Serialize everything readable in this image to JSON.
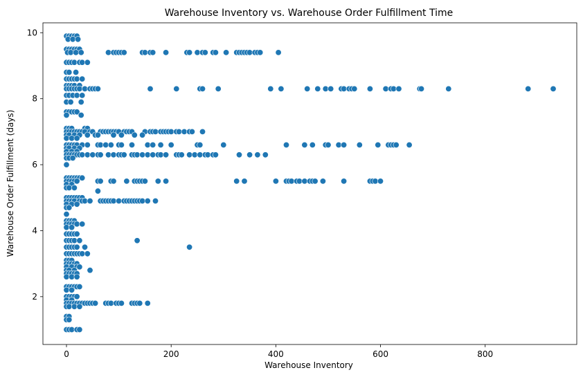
{
  "chart_data": {
    "type": "scatter",
    "title": "Warehouse Inventory vs. Warehouse Order Fulfillment Time",
    "xlabel": "Warehouse Inventory",
    "ylabel": "Warehouse Order Fulfillment (days)",
    "xlim": [
      -45,
      975
    ],
    "ylim": [
      0.55,
      10.3
    ],
    "xticks": [
      0,
      200,
      400,
      600,
      800
    ],
    "yticks": [
      2,
      4,
      6,
      8,
      10
    ],
    "grid": false,
    "color": "#1f77b4",
    "points": [
      [
        0,
        9.9
      ],
      [
        5,
        9.9
      ],
      [
        10,
        9.9
      ],
      [
        15,
        9.9
      ],
      [
        20,
        9.9
      ],
      [
        3,
        9.8
      ],
      [
        12,
        9.8
      ],
      [
        22,
        9.8
      ],
      [
        0,
        9.5
      ],
      [
        5,
        9.5
      ],
      [
        10,
        9.5
      ],
      [
        15,
        9.5
      ],
      [
        20,
        9.5
      ],
      [
        25,
        9.5
      ],
      [
        2,
        9.4
      ],
      [
        8,
        9.4
      ],
      [
        18,
        9.4
      ],
      [
        28,
        9.4
      ],
      [
        80,
        9.4
      ],
      [
        90,
        9.4
      ],
      [
        95,
        9.4
      ],
      [
        100,
        9.4
      ],
      [
        105,
        9.4
      ],
      [
        110,
        9.4
      ],
      [
        145,
        9.4
      ],
      [
        150,
        9.4
      ],
      [
        160,
        9.4
      ],
      [
        165,
        9.4
      ],
      [
        190,
        9.4
      ],
      [
        230,
        9.4
      ],
      [
        235,
        9.4
      ],
      [
        250,
        9.4
      ],
      [
        260,
        9.4
      ],
      [
        265,
        9.4
      ],
      [
        280,
        9.4
      ],
      [
        285,
        9.4
      ],
      [
        305,
        9.4
      ],
      [
        325,
        9.4
      ],
      [
        330,
        9.4
      ],
      [
        335,
        9.4
      ],
      [
        340,
        9.4
      ],
      [
        345,
        9.4
      ],
      [
        350,
        9.4
      ],
      [
        360,
        9.4
      ],
      [
        365,
        9.4
      ],
      [
        370,
        9.4
      ],
      [
        405,
        9.4
      ],
      [
        0,
        9.1
      ],
      [
        5,
        9.1
      ],
      [
        10,
        9.1
      ],
      [
        15,
        9.1
      ],
      [
        25,
        9.1
      ],
      [
        30,
        9.1
      ],
      [
        40,
        9.1
      ],
      [
        0,
        8.8
      ],
      [
        5,
        8.8
      ],
      [
        18,
        8.8
      ],
      [
        0,
        8.6
      ],
      [
        5,
        8.6
      ],
      [
        10,
        8.6
      ],
      [
        15,
        8.6
      ],
      [
        20,
        8.6
      ],
      [
        30,
        8.6
      ],
      [
        0,
        8.4
      ],
      [
        5,
        8.4
      ],
      [
        10,
        8.4
      ],
      [
        15,
        8.4
      ],
      [
        25,
        8.4
      ],
      [
        0,
        8.3
      ],
      [
        5,
        8.3
      ],
      [
        10,
        8.3
      ],
      [
        15,
        8.3
      ],
      [
        20,
        8.3
      ],
      [
        25,
        8.3
      ],
      [
        35,
        8.3
      ],
      [
        45,
        8.3
      ],
      [
        50,
        8.3
      ],
      [
        55,
        8.3
      ],
      [
        60,
        8.3
      ],
      [
        160,
        8.3
      ],
      [
        210,
        8.3
      ],
      [
        255,
        8.3
      ],
      [
        260,
        8.3
      ],
      [
        290,
        8.3
      ],
      [
        390,
        8.3
      ],
      [
        410,
        8.3
      ],
      [
        460,
        8.3
      ],
      [
        480,
        8.3
      ],
      [
        495,
        8.3
      ],
      [
        505,
        8.3
      ],
      [
        525,
        8.3
      ],
      [
        530,
        8.3
      ],
      [
        540,
        8.3
      ],
      [
        545,
        8.3
      ],
      [
        550,
        8.3
      ],
      [
        580,
        8.3
      ],
      [
        610,
        8.3
      ],
      [
        620,
        8.3
      ],
      [
        625,
        8.3
      ],
      [
        635,
        8.3
      ],
      [
        675,
        8.3
      ],
      [
        678,
        8.3
      ],
      [
        730,
        8.3
      ],
      [
        882,
        8.3
      ],
      [
        930,
        8.3
      ],
      [
        0,
        8.1
      ],
      [
        5,
        8.1
      ],
      [
        12,
        8.1
      ],
      [
        20,
        8.1
      ],
      [
        30,
        8.1
      ],
      [
        0,
        7.9
      ],
      [
        8,
        7.9
      ],
      [
        28,
        7.9
      ],
      [
        0,
        7.6
      ],
      [
        5,
        7.6
      ],
      [
        10,
        7.6
      ],
      [
        15,
        7.6
      ],
      [
        20,
        7.6
      ],
      [
        0,
        7.5
      ],
      [
        28,
        7.5
      ],
      [
        0,
        7.1
      ],
      [
        5,
        7.1
      ],
      [
        10,
        7.1
      ],
      [
        35,
        7.1
      ],
      [
        40,
        7.1
      ],
      [
        0,
        7.0
      ],
      [
        5,
        7.0
      ],
      [
        10,
        7.0
      ],
      [
        15,
        7.0
      ],
      [
        20,
        7.0
      ],
      [
        25,
        7.0
      ],
      [
        30,
        7.0
      ],
      [
        35,
        7.0
      ],
      [
        45,
        7.0
      ],
      [
        50,
        7.0
      ],
      [
        65,
        7.0
      ],
      [
        70,
        7.0
      ],
      [
        75,
        7.0
      ],
      [
        80,
        7.0
      ],
      [
        85,
        7.0
      ],
      [
        90,
        7.0
      ],
      [
        95,
        7.0
      ],
      [
        100,
        7.0
      ],
      [
        110,
        7.0
      ],
      [
        115,
        7.0
      ],
      [
        120,
        7.0
      ],
      [
        125,
        7.0
      ],
      [
        150,
        7.0
      ],
      [
        160,
        7.0
      ],
      [
        165,
        7.0
      ],
      [
        170,
        7.0
      ],
      [
        180,
        7.0
      ],
      [
        185,
        7.0
      ],
      [
        190,
        7.0
      ],
      [
        195,
        7.0
      ],
      [
        200,
        7.0
      ],
      [
        210,
        7.0
      ],
      [
        215,
        7.0
      ],
      [
        225,
        7.0
      ],
      [
        235,
        7.0
      ],
      [
        240,
        7.0
      ],
      [
        260,
        7.0
      ],
      [
        0,
        6.9
      ],
      [
        5,
        6.9
      ],
      [
        15,
        6.9
      ],
      [
        25,
        6.9
      ],
      [
        40,
        6.9
      ],
      [
        55,
        6.9
      ],
      [
        60,
        6.9
      ],
      [
        90,
        6.9
      ],
      [
        105,
        6.9
      ],
      [
        130,
        6.9
      ],
      [
        145,
        6.9
      ],
      [
        0,
        6.8
      ],
      [
        10,
        6.8
      ],
      [
        20,
        6.8
      ],
      [
        0,
        6.6
      ],
      [
        5,
        6.6
      ],
      [
        10,
        6.6
      ],
      [
        15,
        6.6
      ],
      [
        20,
        6.6
      ],
      [
        30,
        6.6
      ],
      [
        40,
        6.6
      ],
      [
        60,
        6.6
      ],
      [
        65,
        6.6
      ],
      [
        75,
        6.6
      ],
      [
        85,
        6.6
      ],
      [
        100,
        6.6
      ],
      [
        105,
        6.6
      ],
      [
        125,
        6.6
      ],
      [
        155,
        6.6
      ],
      [
        165,
        6.6
      ],
      [
        180,
        6.6
      ],
      [
        200,
        6.6
      ],
      [
        250,
        6.6
      ],
      [
        255,
        6.6
      ],
      [
        300,
        6.6
      ],
      [
        420,
        6.6
      ],
      [
        455,
        6.6
      ],
      [
        470,
        6.6
      ],
      [
        495,
        6.6
      ],
      [
        500,
        6.6
      ],
      [
        520,
        6.6
      ],
      [
        530,
        6.6
      ],
      [
        560,
        6.6
      ],
      [
        595,
        6.6
      ],
      [
        615,
        6.6
      ],
      [
        620,
        6.6
      ],
      [
        625,
        6.6
      ],
      [
        630,
        6.6
      ],
      [
        655,
        6.6
      ],
      [
        0,
        6.5
      ],
      [
        5,
        6.5
      ],
      [
        15,
        6.5
      ],
      [
        25,
        6.5
      ],
      [
        0,
        6.4
      ],
      [
        10,
        6.4
      ],
      [
        20,
        6.4
      ],
      [
        0,
        6.3
      ],
      [
        5,
        6.3
      ],
      [
        10,
        6.3
      ],
      [
        15,
        6.3
      ],
      [
        20,
        6.3
      ],
      [
        25,
        6.3
      ],
      [
        30,
        6.3
      ],
      [
        40,
        6.3
      ],
      [
        50,
        6.3
      ],
      [
        60,
        6.3
      ],
      [
        65,
        6.3
      ],
      [
        80,
        6.3
      ],
      [
        90,
        6.3
      ],
      [
        100,
        6.3
      ],
      [
        105,
        6.3
      ],
      [
        110,
        6.3
      ],
      [
        125,
        6.3
      ],
      [
        130,
        6.3
      ],
      [
        135,
        6.3
      ],
      [
        145,
        6.3
      ],
      [
        155,
        6.3
      ],
      [
        165,
        6.3
      ],
      [
        175,
        6.3
      ],
      [
        180,
        6.3
      ],
      [
        190,
        6.3
      ],
      [
        210,
        6.3
      ],
      [
        215,
        6.3
      ],
      [
        220,
        6.3
      ],
      [
        235,
        6.3
      ],
      [
        245,
        6.3
      ],
      [
        255,
        6.3
      ],
      [
        265,
        6.3
      ],
      [
        270,
        6.3
      ],
      [
        280,
        6.3
      ],
      [
        285,
        6.3
      ],
      [
        330,
        6.3
      ],
      [
        350,
        6.3
      ],
      [
        365,
        6.3
      ],
      [
        380,
        6.3
      ],
      [
        0,
        6.2
      ],
      [
        5,
        6.2
      ],
      [
        12,
        6.2
      ],
      [
        0,
        6.0
      ],
      [
        0,
        5.6
      ],
      [
        5,
        5.6
      ],
      [
        10,
        5.6
      ],
      [
        15,
        5.6
      ],
      [
        20,
        5.6
      ],
      [
        25,
        5.6
      ],
      [
        30,
        5.6
      ],
      [
        0,
        5.5
      ],
      [
        5,
        5.5
      ],
      [
        10,
        5.5
      ],
      [
        15,
        5.5
      ],
      [
        20,
        5.5
      ],
      [
        60,
        5.5
      ],
      [
        65,
        5.5
      ],
      [
        85,
        5.5
      ],
      [
        90,
        5.5
      ],
      [
        115,
        5.5
      ],
      [
        130,
        5.5
      ],
      [
        135,
        5.5
      ],
      [
        140,
        5.5
      ],
      [
        145,
        5.5
      ],
      [
        150,
        5.5
      ],
      [
        175,
        5.5
      ],
      [
        190,
        5.5
      ],
      [
        325,
        5.5
      ],
      [
        340,
        5.5
      ],
      [
        400,
        5.5
      ],
      [
        420,
        5.5
      ],
      [
        425,
        5.5
      ],
      [
        430,
        5.5
      ],
      [
        440,
        5.5
      ],
      [
        445,
        5.5
      ],
      [
        455,
        5.5
      ],
      [
        465,
        5.5
      ],
      [
        470,
        5.5
      ],
      [
        475,
        5.5
      ],
      [
        490,
        5.5
      ],
      [
        530,
        5.5
      ],
      [
        580,
        5.5
      ],
      [
        585,
        5.5
      ],
      [
        590,
        5.5
      ],
      [
        600,
        5.5
      ],
      [
        0,
        5.4
      ],
      [
        10,
        5.4
      ],
      [
        0,
        5.3
      ],
      [
        5,
        5.3
      ],
      [
        15,
        5.3
      ],
      [
        60,
        5.2
      ],
      [
        0,
        5.0
      ],
      [
        5,
        5.0
      ],
      [
        10,
        5.0
      ],
      [
        15,
        5.0
      ],
      [
        20,
        5.0
      ],
      [
        25,
        5.0
      ],
      [
        30,
        5.0
      ],
      [
        0,
        4.9
      ],
      [
        5,
        4.9
      ],
      [
        10,
        4.9
      ],
      [
        15,
        4.9
      ],
      [
        25,
        4.9
      ],
      [
        30,
        4.9
      ],
      [
        35,
        4.9
      ],
      [
        45,
        4.9
      ],
      [
        65,
        4.9
      ],
      [
        70,
        4.9
      ],
      [
        75,
        4.9
      ],
      [
        80,
        4.9
      ],
      [
        85,
        4.9
      ],
      [
        90,
        4.9
      ],
      [
        100,
        4.9
      ],
      [
        110,
        4.9
      ],
      [
        115,
        4.9
      ],
      [
        120,
        4.9
      ],
      [
        125,
        4.9
      ],
      [
        130,
        4.9
      ],
      [
        135,
        4.9
      ],
      [
        140,
        4.9
      ],
      [
        145,
        4.9
      ],
      [
        155,
        4.9
      ],
      [
        170,
        4.9
      ],
      [
        0,
        4.8
      ],
      [
        10,
        4.8
      ],
      [
        20,
        4.8
      ],
      [
        0,
        4.7
      ],
      [
        5,
        4.7
      ],
      [
        0,
        4.5
      ],
      [
        0,
        4.3
      ],
      [
        5,
        4.3
      ],
      [
        10,
        4.3
      ],
      [
        15,
        4.3
      ],
      [
        0,
        4.2
      ],
      [
        5,
        4.2
      ],
      [
        10,
        4.2
      ],
      [
        15,
        4.2
      ],
      [
        20,
        4.2
      ],
      [
        30,
        4.2
      ],
      [
        0,
        4.1
      ],
      [
        10,
        4.1
      ],
      [
        0,
        3.9
      ],
      [
        5,
        3.9
      ],
      [
        10,
        3.9
      ],
      [
        15,
        3.9
      ],
      [
        20,
        3.9
      ],
      [
        0,
        3.7
      ],
      [
        5,
        3.7
      ],
      [
        10,
        3.7
      ],
      [
        15,
        3.7
      ],
      [
        25,
        3.7
      ],
      [
        135,
        3.7
      ],
      [
        0,
        3.5
      ],
      [
        5,
        3.5
      ],
      [
        10,
        3.5
      ],
      [
        15,
        3.5
      ],
      [
        20,
        3.5
      ],
      [
        35,
        3.5
      ],
      [
        235,
        3.5
      ],
      [
        0,
        3.3
      ],
      [
        5,
        3.3
      ],
      [
        10,
        3.3
      ],
      [
        15,
        3.3
      ],
      [
        20,
        3.3
      ],
      [
        25,
        3.3
      ],
      [
        30,
        3.3
      ],
      [
        40,
        3.3
      ],
      [
        0,
        3.1
      ],
      [
        5,
        3.1
      ],
      [
        10,
        3.1
      ],
      [
        0,
        3.0
      ],
      [
        5,
        3.0
      ],
      [
        10,
        3.0
      ],
      [
        15,
        3.0
      ],
      [
        20,
        3.0
      ],
      [
        0,
        2.9
      ],
      [
        10,
        2.9
      ],
      [
        20,
        2.9
      ],
      [
        25,
        2.9
      ],
      [
        0,
        2.8
      ],
      [
        5,
        2.8
      ],
      [
        15,
        2.8
      ],
      [
        45,
        2.8
      ],
      [
        0,
        2.7
      ],
      [
        5,
        2.7
      ],
      [
        10,
        2.7
      ],
      [
        15,
        2.7
      ],
      [
        20,
        2.7
      ],
      [
        0,
        2.6
      ],
      [
        10,
        2.6
      ],
      [
        20,
        2.6
      ],
      [
        0,
        2.3
      ],
      [
        5,
        2.3
      ],
      [
        10,
        2.3
      ],
      [
        15,
        2.3
      ],
      [
        20,
        2.3
      ],
      [
        25,
        2.3
      ],
      [
        0,
        2.2
      ],
      [
        10,
        2.2
      ],
      [
        0,
        2.0
      ],
      [
        5,
        2.0
      ],
      [
        10,
        2.0
      ],
      [
        15,
        2.0
      ],
      [
        20,
        2.0
      ],
      [
        0,
        1.9
      ],
      [
        10,
        1.9
      ],
      [
        0,
        1.8
      ],
      [
        5,
        1.8
      ],
      [
        10,
        1.8
      ],
      [
        15,
        1.8
      ],
      [
        20,
        1.8
      ],
      [
        25,
        1.8
      ],
      [
        30,
        1.8
      ],
      [
        35,
        1.8
      ],
      [
        40,
        1.8
      ],
      [
        45,
        1.8
      ],
      [
        50,
        1.8
      ],
      [
        55,
        1.8
      ],
      [
        75,
        1.8
      ],
      [
        80,
        1.8
      ],
      [
        85,
        1.8
      ],
      [
        95,
        1.8
      ],
      [
        100,
        1.8
      ],
      [
        105,
        1.8
      ],
      [
        125,
        1.8
      ],
      [
        130,
        1.8
      ],
      [
        135,
        1.8
      ],
      [
        140,
        1.8
      ],
      [
        155,
        1.8
      ],
      [
        0,
        1.7
      ],
      [
        5,
        1.7
      ],
      [
        15,
        1.7
      ],
      [
        25,
        1.7
      ],
      [
        0,
        1.4
      ],
      [
        5,
        1.4
      ],
      [
        0,
        1.3
      ],
      [
        5,
        1.3
      ],
      [
        0,
        1.0
      ],
      [
        5,
        1.0
      ],
      [
        10,
        1.0
      ],
      [
        20,
        1.0
      ],
      [
        25,
        1.0
      ]
    ]
  }
}
